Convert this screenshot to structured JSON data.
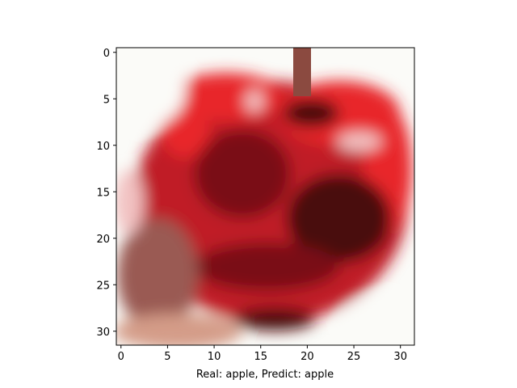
{
  "figure": {
    "xlabel": "Real: apple, Predict: apple",
    "xticks": [
      "0",
      "5",
      "10",
      "15",
      "20",
      "25",
      "30"
    ],
    "yticks": [
      "0",
      "5",
      "10",
      "15",
      "20",
      "25",
      "30"
    ],
    "x_range": [
      -0.5,
      31.5
    ],
    "y_range": [
      -0.5,
      31.5
    ],
    "y_inverted": true,
    "image": {
      "resolution": [
        32,
        32
      ],
      "subject": "red apple on white background, low-resolution pixelated photo",
      "colors": {
        "background": "#fbfbf8",
        "bright_red": "#e8252a",
        "red": "#c01f26",
        "dark_red": "#7a1016",
        "deep_maroon": "#4a0a0e",
        "stem_brown": "#8b4a40",
        "skin_shadow": "#9a5a52",
        "peach": "#d49c88",
        "highlight_pink": "#f2c2c2"
      }
    }
  }
}
